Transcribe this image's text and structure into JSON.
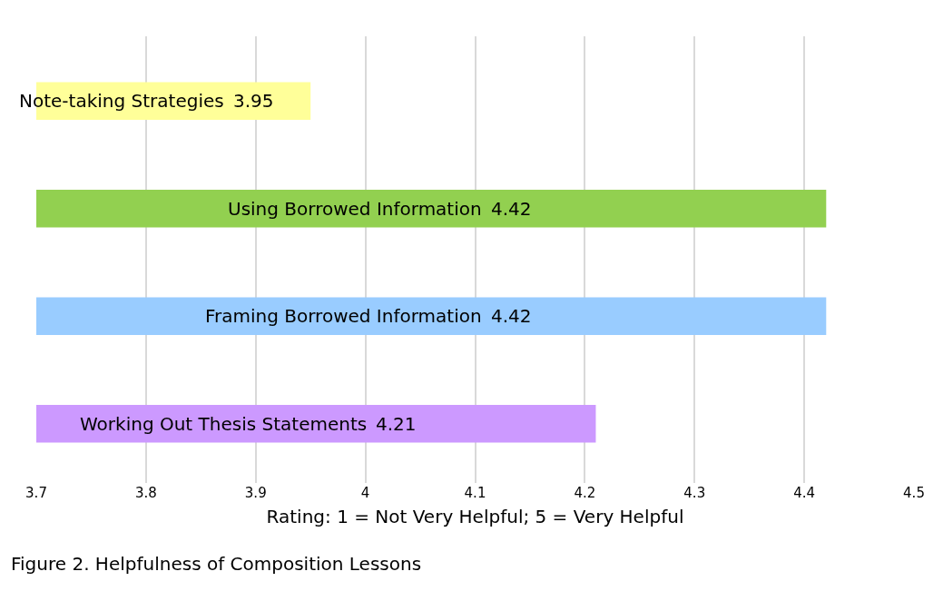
{
  "chart_data": {
    "type": "bar",
    "orientation": "horizontal",
    "categories": [
      "Note-taking Strategies",
      "Using Borrowed Information",
      "Framing Borrowed Information",
      "Working Out Thesis Statements"
    ],
    "values": [
      3.95,
      4.42,
      4.42,
      4.21
    ],
    "colors": [
      "#ffff99",
      "#92d050",
      "#99ccff",
      "#cc99ff"
    ],
    "xlim": [
      3.7,
      4.5
    ],
    "xticks": [
      3.7,
      3.8,
      3.9,
      4,
      4.1,
      4.2,
      4.3,
      4.4,
      4.5
    ],
    "xlabel": "Rating: 1 = Not Very Helpful; 5 = Very Helpful",
    "annotations": [
      "Figure 2. Helpfulness of Composition Lessons"
    ],
    "grid": "x",
    "tick_labels": "x",
    "data_labels": true,
    "legend": false
  }
}
